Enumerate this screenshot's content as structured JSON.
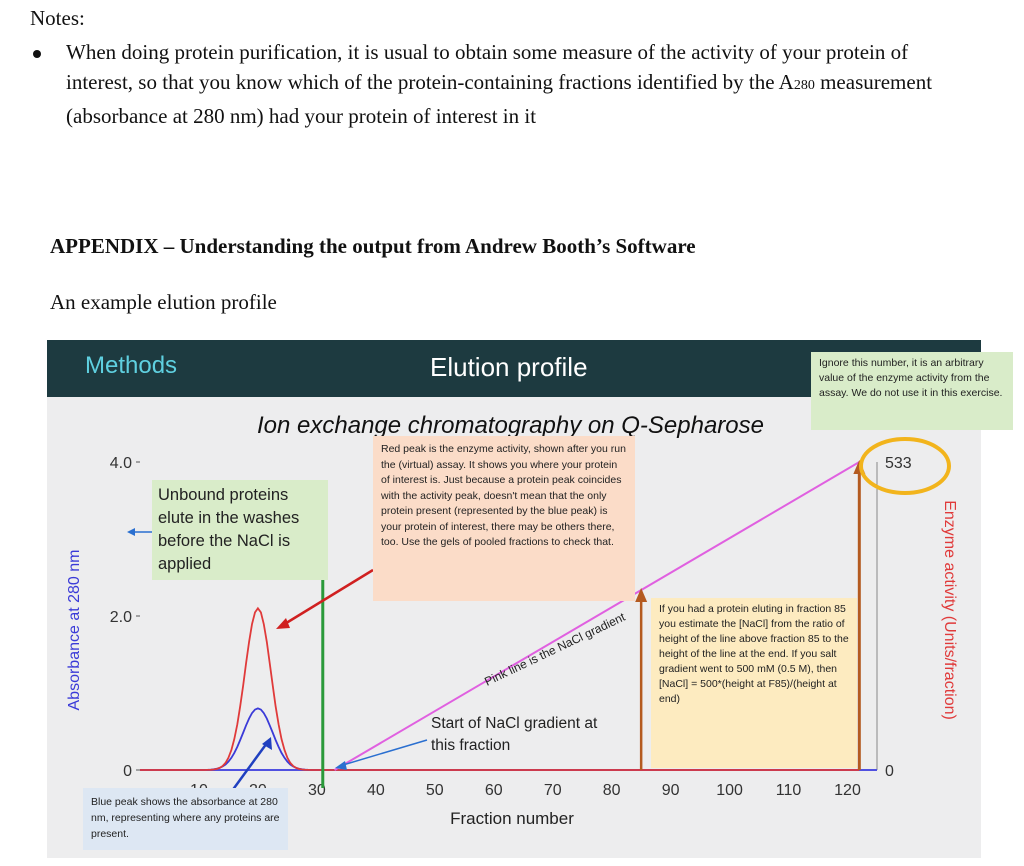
{
  "notes": {
    "title": "Notes:",
    "bullet_before": "When doing protein purification, it is usual to obtain some measure of the activity of your protein of interest, so that you know which of the protein-containing fractions identified by the A",
    "bullet_sub": "280",
    "bullet_after": " measurement (absorbance at 280 nm) had your protein of interest in it"
  },
  "appendix": {
    "heading": "APPENDIX – Understanding the output from Andrew Booth’s Software",
    "subheading": "An example elution profile"
  },
  "figure": {
    "header_left": "Methods",
    "header_center": "Elution profile",
    "title": "Ion exchange chromatography on Q-Sepharose",
    "unbound_note": "Unbound proteins elute in the washes before the NaCl is applied",
    "red_peak_note": "Red peak is the enzyme activity, shown after you run the (virtual) assay. It shows you where your protein of interest is. Just because a protein peak coincides with the activity peak, doesn't mean that the only protein present (represented by the blue peak) is your protein of interest, there may be others there, too. Use the gels of pooled fractions to check that.",
    "ignore_note": "Ignore this number, it is an arbitrary value of the enzyme activity from the assay. We do not use it in this exercise.",
    "nacl_note": "If you had a protein eluting in fraction 85 you estimate the [NaCl] from the ratio of height of the line above fraction 85 to the height of the line at the end. If you salt gradient went to 500 mM (0.5 M), then [NaCl] = 500*(height at F85)/(height at end)",
    "blue_peak_note": "Blue peak shows the absorbance at 280 nm, representing where any proteins are present.",
    "start_gradient_line1": "Start of NaCl gradient at",
    "start_gradient_line2": "this fraction",
    "pink_line_label": "Pink line is the NaCl gradient"
  },
  "chart_data": {
    "type": "line",
    "title": "Ion exchange chromatography on Q-Sepharose",
    "xlabel": "Fraction number",
    "ylabel": "Absorbance at 280 nm",
    "y2label": "Enzyme activity (Units/fraction)",
    "x_ticks": [
      "10",
      "20",
      "30",
      "40",
      "50",
      "60",
      "70",
      "80",
      "90",
      "100",
      "110",
      "120"
    ],
    "y_ticks": [
      "0",
      "2.0",
      "4.0"
    ],
    "y2_ticks": [
      "0",
      "533"
    ],
    "xlim": [
      0,
      125
    ],
    "ylim": [
      0,
      4.0
    ],
    "y2lim": [
      0,
      533
    ],
    "series": [
      {
        "name": "Absorbance at 280 nm",
        "color": "#3a3ad8",
        "peak_x": 20,
        "peak_y": 0.8,
        "width": 2.5
      },
      {
        "name": "Enzyme activity",
        "color": "#e03a3a",
        "peak_x": 20,
        "peak_y": 2.1,
        "width": 2.2
      },
      {
        "name": "NaCl gradient",
        "color": "#e060e0",
        "x": [
          33,
          122
        ],
        "y": [
          0,
          533
        ]
      }
    ],
    "markers": {
      "start_gradient_fraction": 31,
      "example_fraction": 85,
      "end_fraction": 122
    }
  }
}
